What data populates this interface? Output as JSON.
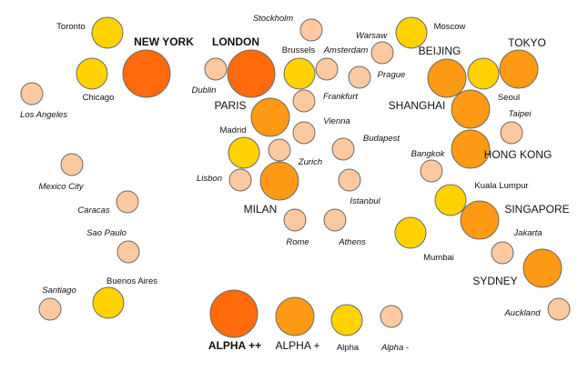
{
  "tier_colors": {
    "alpha_pp": "#ff6a0d",
    "alpha_p": "#ff9a14",
    "alpha": "#ffd200",
    "alpha_m": "#fdc9a0"
  },
  "cities": [
    {
      "id": "toronto",
      "name": "Toronto",
      "tier": "alpha"
    },
    {
      "id": "new-york",
      "name": "NEW YORK",
      "tier": "alpha_pp"
    },
    {
      "id": "chicago",
      "name": "Chicago",
      "tier": "alpha"
    },
    {
      "id": "los-angeles",
      "name": "Los Angeles",
      "tier": "alpha_m"
    },
    {
      "id": "mexico-city",
      "name": "Mexico City",
      "tier": "alpha_m"
    },
    {
      "id": "caracas",
      "name": "Caracas",
      "tier": "alpha_m"
    },
    {
      "id": "sao-paulo",
      "name": "Sao Paulo",
      "tier": "alpha_m"
    },
    {
      "id": "buenos-aires",
      "name": "Buenos Aires",
      "tier": "alpha"
    },
    {
      "id": "santiago",
      "name": "Santiago",
      "tier": "alpha_m"
    },
    {
      "id": "stockholm",
      "name": "Stockholm",
      "tier": "alpha_m"
    },
    {
      "id": "london",
      "name": "LONDON",
      "tier": "alpha_pp"
    },
    {
      "id": "dublin",
      "name": "Dublin",
      "tier": "alpha_m"
    },
    {
      "id": "brussels",
      "name": "Brussels",
      "tier": "alpha"
    },
    {
      "id": "amsterdam",
      "name": "Amsterdam",
      "tier": "alpha_m"
    },
    {
      "id": "warsaw",
      "name": "Warsaw",
      "tier": "alpha_m"
    },
    {
      "id": "prague",
      "name": "Prague",
      "tier": "alpha_m"
    },
    {
      "id": "frankfurt",
      "name": "Frankfurt",
      "tier": "alpha_m"
    },
    {
      "id": "paris",
      "name": "PARIS",
      "tier": "alpha_p"
    },
    {
      "id": "vienna",
      "name": "Vienna",
      "tier": "alpha_m"
    },
    {
      "id": "madrid",
      "name": "Madrid",
      "tier": "alpha"
    },
    {
      "id": "zurich",
      "name": "Zurich",
      "tier": "alpha_m"
    },
    {
      "id": "budapest",
      "name": "Budapest",
      "tier": "alpha_m"
    },
    {
      "id": "lisbon",
      "name": "Lisbon",
      "tier": "alpha_m"
    },
    {
      "id": "milan",
      "name": "MILAN",
      "tier": "alpha_p"
    },
    {
      "id": "istanbul",
      "name": "Istanbul",
      "tier": "alpha_m"
    },
    {
      "id": "rome",
      "name": "Rome",
      "tier": "alpha_m"
    },
    {
      "id": "athens",
      "name": "Athens",
      "tier": "alpha_m"
    },
    {
      "id": "moscow",
      "name": "Moscow",
      "tier": "alpha"
    },
    {
      "id": "beijing",
      "name": "BEIJING",
      "tier": "alpha_p"
    },
    {
      "id": "tokyo",
      "name": "TOKYO",
      "tier": "alpha_p"
    },
    {
      "id": "seoul",
      "name": "Seoul",
      "tier": "alpha"
    },
    {
      "id": "shanghai",
      "name": "SHANGHAI",
      "tier": "alpha_p"
    },
    {
      "id": "taipei",
      "name": "Taipei",
      "tier": "alpha_m"
    },
    {
      "id": "hong-kong",
      "name": "HONG KONG",
      "tier": "alpha_p"
    },
    {
      "id": "bangkok",
      "name": "Bangkok",
      "tier": "alpha_m"
    },
    {
      "id": "kuala-lumpur",
      "name": "Kuala Lumpur",
      "tier": "alpha"
    },
    {
      "id": "singapore",
      "name": "SINGAPORE",
      "tier": "alpha_p"
    },
    {
      "id": "mumbai",
      "name": "Mumbai",
      "tier": "alpha"
    },
    {
      "id": "jakarta",
      "name": "Jakarta",
      "tier": "alpha_m"
    },
    {
      "id": "sydney",
      "name": "SYDNEY",
      "tier": "alpha_p"
    },
    {
      "id": "auckland",
      "name": "Auckland",
      "tier": "alpha_m"
    }
  ],
  "legend": [
    {
      "id": "alpha-pp",
      "label": "ALPHA ++",
      "tier": "alpha_pp"
    },
    {
      "id": "alpha-p",
      "label": "ALPHA +",
      "tier": "alpha_p"
    },
    {
      "id": "alpha",
      "label": "Alpha",
      "tier": "alpha"
    },
    {
      "id": "alpha-m",
      "label": "Alpha -",
      "tier": "alpha_m"
    }
  ]
}
